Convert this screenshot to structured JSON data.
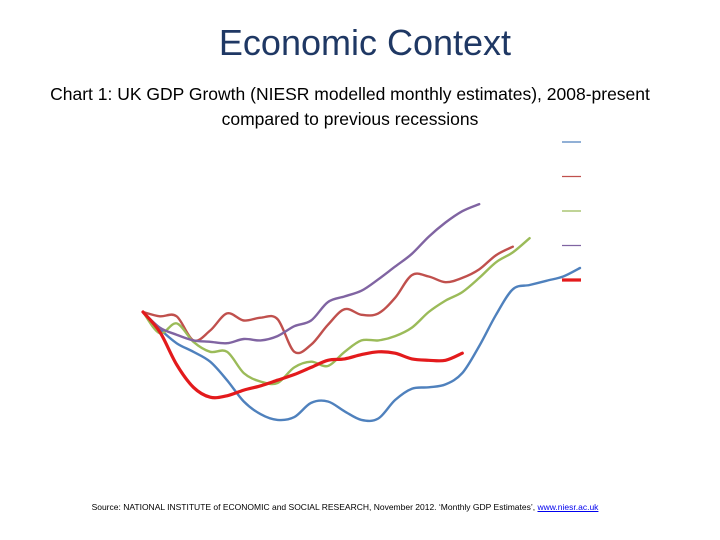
{
  "slide": {
    "title": "Economic Context"
  },
  "chart_data": {
    "type": "line",
    "title_line1": "Chart 1: UK GDP Growth (NIESR modelled monthly estimates), 2008-present",
    "title_line2": "compared to previous recessions",
    "grid": false,
    "legend_placement": "top-right",
    "series": [
      {
        "color": "#4f81bd",
        "values": [
          0,
          -1.2,
          -2.2,
          -2.8,
          -3.5,
          -4.8,
          -6.3,
          -7.2,
          -7.6,
          -7.4,
          -6.4,
          -6.3,
          -7.0,
          -7.6,
          -7.5,
          -6.2,
          -5.4,
          -5.3,
          -5.1,
          -4.3,
          -2.4,
          -0.2,
          1.6,
          1.9,
          2.2,
          2.5,
          3.1
        ]
      },
      {
        "color": "#c0504d",
        "values": [
          0,
          -0.3,
          -0.3,
          -2.0,
          -1.3,
          -0.1,
          -0.6,
          -0.4,
          -0.5,
          -2.8,
          -2.3,
          -0.9,
          0.2,
          -0.2,
          -0.1,
          1.0,
          2.6,
          2.5,
          2.1,
          2.4,
          3.0,
          4.0,
          4.6
        ]
      },
      {
        "color": "#9bbb59",
        "values": [
          0,
          -1.5,
          -0.8,
          -2.1,
          -2.8,
          -2.8,
          -4.3,
          -4.9,
          -5.0,
          -3.9,
          -3.5,
          -3.8,
          -2.8,
          -2.0,
          -2.0,
          -1.7,
          -1.1,
          0.0,
          0.8,
          1.4,
          2.4,
          3.5,
          4.2,
          5.2
        ]
      },
      {
        "color": "#8064a2",
        "values": [
          0,
          -1.1,
          -1.6,
          -2.0,
          -2.1,
          -2.2,
          -1.9,
          -2.0,
          -1.7,
          -1.0,
          -0.6,
          0.7,
          1.1,
          1.5,
          2.3,
          3.2,
          4.1,
          5.3,
          6.3,
          7.1,
          7.6
        ]
      },
      {
        "color": "#e31a1c",
        "values": [
          0,
          -1.4,
          -3.7,
          -5.3,
          -6.0,
          -5.9,
          -5.5,
          -5.2,
          -4.8,
          -4.4,
          -3.9,
          -3.4,
          -3.3,
          -3.0,
          -2.8,
          -2.9,
          -3.3,
          -3.4,
          -3.4,
          -2.9
        ]
      }
    ]
  },
  "source": {
    "text": "Source: NATIONAL INSTITUTE of ECONOMIC and SOCIAL RESEARCH, November 2012. ‘Monthly GDP Estimates’, ",
    "link": "www.niesr.ac.uk"
  }
}
